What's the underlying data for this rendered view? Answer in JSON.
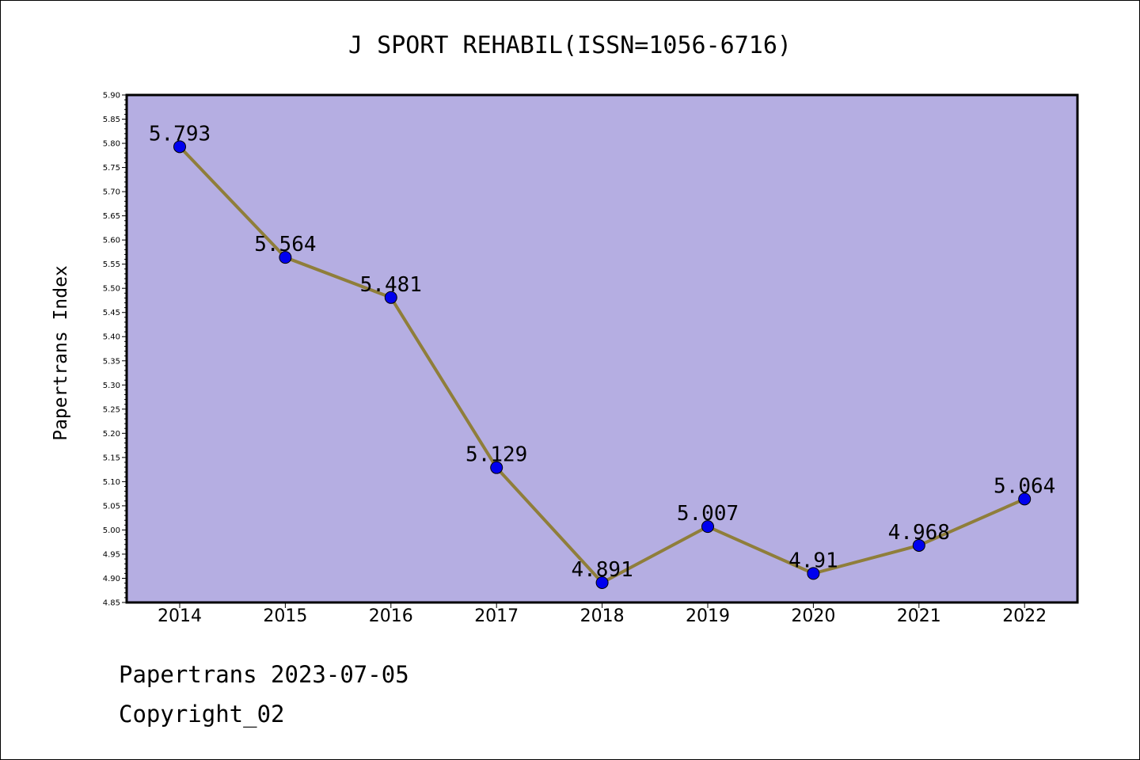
{
  "chart_data": {
    "type": "line",
    "title": "J SPORT REHABIL(ISSN=1056-6716)",
    "ylabel": "Papertrans Index",
    "xlabel": "",
    "x": [
      "2014",
      "2015",
      "2016",
      "2017",
      "2018",
      "2019",
      "2020",
      "2021",
      "2022"
    ],
    "series": [
      {
        "values": [
          5.793,
          5.564,
          5.481,
          5.129,
          4.891,
          5.007,
          4.91,
          4.968,
          5.064
        ]
      }
    ],
    "data_labels": [
      "5.793",
      "5.564",
      "5.481",
      "5.129",
      "4.891",
      "5.007",
      "4.91",
      "4.968",
      "5.064"
    ],
    "ylim": [
      4.85,
      5.9
    ],
    "yticks": [
      "5.90",
      "5.85",
      "5.80",
      "5.75",
      "5.70",
      "5.65",
      "5.60",
      "5.55",
      "5.50",
      "5.45",
      "5.40",
      "5.35",
      "5.30",
      "5.25",
      "5.20",
      "5.15",
      "5.10",
      "5.05",
      "5.00",
      "4.95",
      "4.90",
      "4.85"
    ],
    "colors": {
      "plot_bg": "#b5aee2",
      "line": "#8f7e3a",
      "marker": "#0000ee"
    },
    "grid": false
  },
  "footer": {
    "line1": "Papertrans 2023-07-05",
    "line2": "Copyright_02"
  }
}
